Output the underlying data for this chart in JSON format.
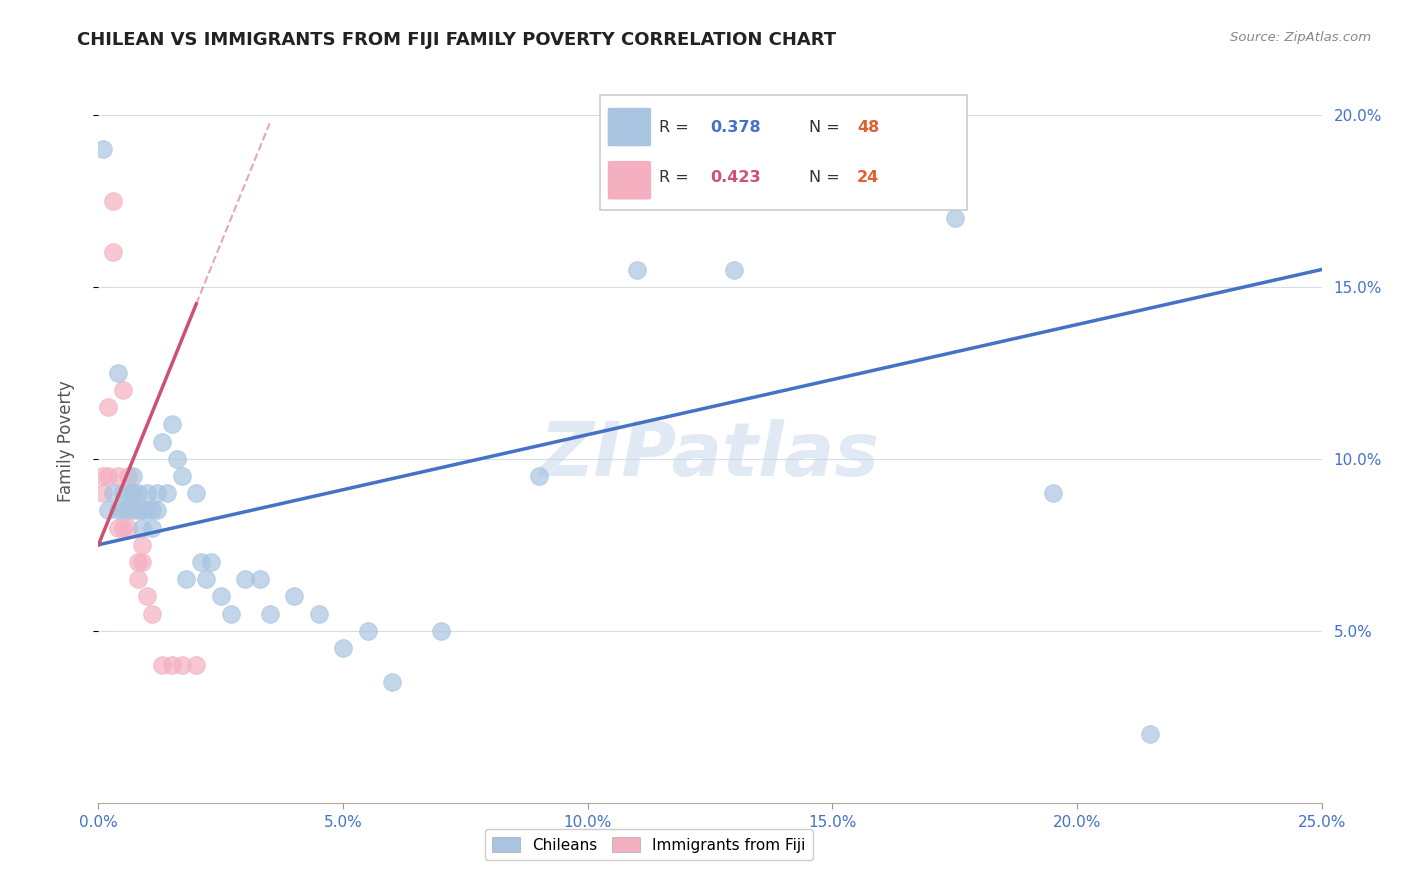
{
  "title": "CHILEAN VS IMMIGRANTS FROM FIJI FAMILY POVERTY CORRELATION CHART",
  "source": "Source: ZipAtlas.com",
  "ylabel": "Family Poverty",
  "watermark": "ZIPatlas",
  "xlim": [
    0.0,
    0.25
  ],
  "ylim": [
    0.0,
    0.21
  ],
  "xticks": [
    0.0,
    0.05,
    0.1,
    0.15,
    0.2,
    0.25
  ],
  "xtick_labels": [
    "0.0%",
    "5.0%",
    "10.0%",
    "15.0%",
    "20.0%",
    "25.0%"
  ],
  "yticks": [
    0.05,
    0.1,
    0.15,
    0.2
  ],
  "ytick_labels": [
    "5.0%",
    "10.0%",
    "15.0%",
    "20.0%"
  ],
  "blue_color": "#a8c4e0",
  "pink_color": "#f4b0c0",
  "blue_line_color": "#4472c4",
  "pink_line_color": "#d05070",
  "blue_N": 48,
  "pink_N": 24,
  "blue_R": "0.378",
  "pink_R": "0.423",
  "blue_scatter_x": [
    0.001,
    0.002,
    0.003,
    0.004,
    0.004,
    0.005,
    0.005,
    0.006,
    0.006,
    0.007,
    0.007,
    0.008,
    0.008,
    0.009,
    0.009,
    0.01,
    0.01,
    0.011,
    0.011,
    0.012,
    0.012,
    0.013,
    0.014,
    0.015,
    0.016,
    0.017,
    0.018,
    0.02,
    0.021,
    0.022,
    0.023,
    0.025,
    0.027,
    0.03,
    0.033,
    0.035,
    0.04,
    0.045,
    0.05,
    0.055,
    0.06,
    0.07,
    0.09,
    0.11,
    0.13,
    0.175,
    0.195,
    0.215
  ],
  "blue_scatter_y": [
    0.19,
    0.085,
    0.09,
    0.125,
    0.085,
    0.09,
    0.085,
    0.09,
    0.085,
    0.09,
    0.095,
    0.085,
    0.09,
    0.08,
    0.085,
    0.085,
    0.09,
    0.08,
    0.085,
    0.085,
    0.09,
    0.105,
    0.09,
    0.11,
    0.1,
    0.095,
    0.065,
    0.09,
    0.07,
    0.065,
    0.07,
    0.06,
    0.055,
    0.065,
    0.065,
    0.055,
    0.06,
    0.055,
    0.045,
    0.05,
    0.035,
    0.05,
    0.095,
    0.155,
    0.155,
    0.17,
    0.09,
    0.02
  ],
  "pink_scatter_x": [
    0.001,
    0.001,
    0.002,
    0.002,
    0.003,
    0.003,
    0.004,
    0.004,
    0.005,
    0.005,
    0.006,
    0.006,
    0.007,
    0.007,
    0.008,
    0.008,
    0.009,
    0.009,
    0.01,
    0.011,
    0.013,
    0.015,
    0.017,
    0.02
  ],
  "pink_scatter_y": [
    0.09,
    0.095,
    0.095,
    0.115,
    0.16,
    0.175,
    0.095,
    0.08,
    0.08,
    0.12,
    0.08,
    0.095,
    0.09,
    0.085,
    0.065,
    0.07,
    0.07,
    0.075,
    0.06,
    0.055,
    0.04,
    0.04,
    0.04,
    0.04
  ],
  "pink_line_x_end": 0.02,
  "pink_line_y_start": 0.075,
  "pink_line_y_end": 0.145,
  "blue_line_y_at_0": 0.075,
  "blue_line_y_at_025": 0.155
}
